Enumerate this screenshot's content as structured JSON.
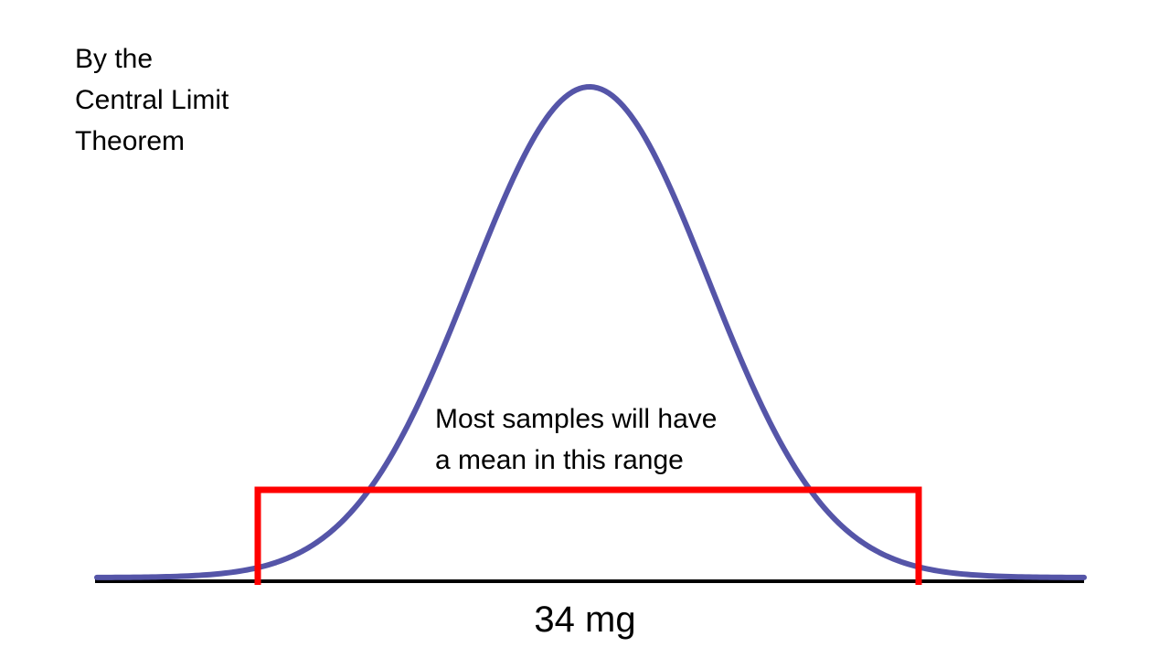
{
  "heading": {
    "lines": [
      "By the",
      "Central Limit",
      "Theorem"
    ]
  },
  "range_note": {
    "lines": [
      "Most samples will have",
      "a mean in this range"
    ]
  },
  "center_label": "34 mg",
  "colors": {
    "curve": "#5555A8",
    "range_box": "#FF0000",
    "axis": "#000000",
    "background": "#FFFFFF"
  },
  "icons": {
    "curve": "bell-curve-icon",
    "range": "range-bracket-icon"
  }
}
